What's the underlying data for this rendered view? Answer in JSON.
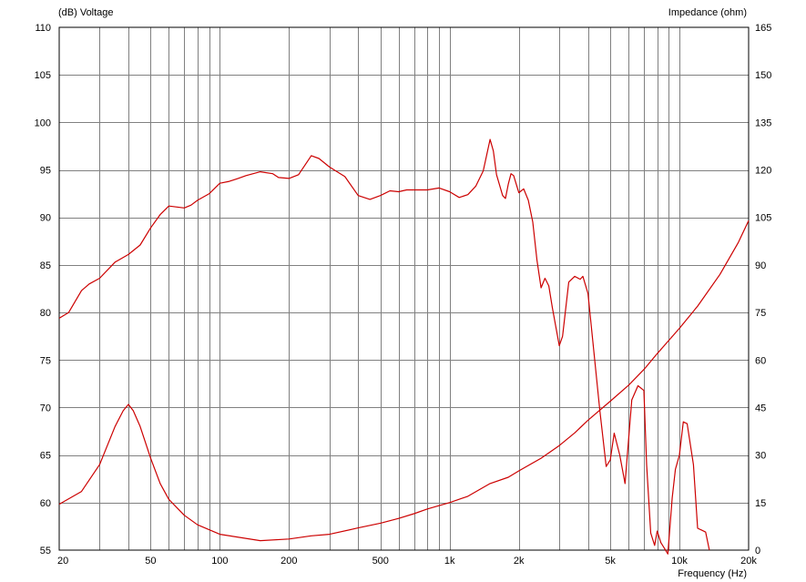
{
  "chart_data": {
    "type": "line",
    "title": "",
    "left_axis_label": "(dB)  Voltage",
    "right_axis_label": "Impedance  (ohm)",
    "xlabel": "Frequency  (Hz)",
    "x_scale": "log",
    "xlim": [
      20,
      20000
    ],
    "ylim_left": [
      55,
      110
    ],
    "ylim_right": [
      0,
      165
    ],
    "grid": true,
    "line_color": "#cc0000",
    "grid_color": "#808080",
    "left_ticks": [
      "110",
      "105",
      "100",
      "95",
      "90",
      "85",
      "80",
      "75",
      "70",
      "65",
      "60",
      "55"
    ],
    "right_ticks": [
      "165",
      "150",
      "135",
      "120",
      "105",
      "90",
      "75",
      "60",
      "45",
      "30",
      "15",
      "0"
    ],
    "x_ticks": [
      {
        "value": 20,
        "label": "20"
      },
      {
        "value": 50,
        "label": "50"
      },
      {
        "value": 100,
        "label": "100"
      },
      {
        "value": 200,
        "label": "200"
      },
      {
        "value": 500,
        "label": "500"
      },
      {
        "value": 1000,
        "label": "1k"
      },
      {
        "value": 2000,
        "label": "2k"
      },
      {
        "value": 5000,
        "label": "5k"
      },
      {
        "value": 10000,
        "label": "10k"
      },
      {
        "value": 20000,
        "label": "20k"
      }
    ],
    "series": [
      {
        "axis": "left",
        "points": [
          [
            20,
            79.4
          ],
          [
            22,
            80
          ],
          [
            25,
            82.3
          ],
          [
            27,
            83
          ],
          [
            30,
            83.6
          ],
          [
            35,
            85.3
          ],
          [
            40,
            86.1
          ],
          [
            45,
            87.1
          ],
          [
            50,
            88.9
          ],
          [
            55,
            90.3
          ],
          [
            60,
            91.2
          ],
          [
            70,
            91
          ],
          [
            75,
            91.3
          ],
          [
            80,
            91.8
          ],
          [
            90,
            92.5
          ],
          [
            100,
            93.6
          ],
          [
            110,
            93.8
          ],
          [
            120,
            94.1
          ],
          [
            130,
            94.4
          ],
          [
            150,
            94.8
          ],
          [
            170,
            94.6
          ],
          [
            180,
            94.2
          ],
          [
            200,
            94.1
          ],
          [
            220,
            94.5
          ],
          [
            250,
            96.5
          ],
          [
            270,
            96.2
          ],
          [
            300,
            95.3
          ],
          [
            350,
            94.3
          ],
          [
            400,
            92.3
          ],
          [
            450,
            91.9
          ],
          [
            500,
            92.3
          ],
          [
            550,
            92.8
          ],
          [
            600,
            92.7
          ],
          [
            650,
            92.9
          ],
          [
            700,
            92.9
          ],
          [
            800,
            92.9
          ],
          [
            900,
            93.1
          ],
          [
            1000,
            92.7
          ],
          [
            1100,
            92.1
          ],
          [
            1200,
            92.4
          ],
          [
            1300,
            93.3
          ],
          [
            1400,
            94.9
          ],
          [
            1500,
            98.2
          ],
          [
            1550,
            97
          ],
          [
            1600,
            94.5
          ],
          [
            1700,
            92.3
          ],
          [
            1750,
            92
          ],
          [
            1800,
            93.5
          ],
          [
            1850,
            94.6
          ],
          [
            1900,
            94.4
          ],
          [
            2000,
            92.6
          ],
          [
            2100,
            93
          ],
          [
            2200,
            91.8
          ],
          [
            2300,
            89.5
          ],
          [
            2400,
            85.5
          ],
          [
            2500,
            82.6
          ],
          [
            2600,
            83.6
          ],
          [
            2700,
            82.8
          ],
          [
            2800,
            80.5
          ],
          [
            3000,
            76.5
          ],
          [
            3100,
            77.5
          ],
          [
            3300,
            83.2
          ],
          [
            3500,
            83.8
          ],
          [
            3700,
            83.5
          ],
          [
            3800,
            83.8
          ],
          [
            4000,
            82
          ],
          [
            4500,
            69.8
          ],
          [
            4800,
            63.8
          ],
          [
            5000,
            64.5
          ],
          [
            5200,
            67.3
          ],
          [
            5500,
            65
          ],
          [
            5800,
            62
          ],
          [
            6200,
            70.8
          ],
          [
            6600,
            72.3
          ],
          [
            7000,
            71.8
          ],
          [
            7200,
            64
          ],
          [
            7500,
            56.8
          ],
          [
            7800,
            55.5
          ],
          [
            8000,
            57
          ],
          [
            8300,
            55.8
          ],
          [
            8600,
            55.2
          ],
          [
            8900,
            54.6
          ],
          [
            9300,
            60.5
          ],
          [
            9600,
            63.5
          ],
          [
            10000,
            65
          ],
          [
            10400,
            68.5
          ],
          [
            10800,
            68.3
          ],
          [
            11500,
            64
          ],
          [
            12000,
            57.3
          ],
          [
            12500,
            57.1
          ],
          [
            13000,
            56.9
          ],
          [
            13500,
            55
          ]
        ]
      },
      {
        "axis": "right",
        "points": [
          [
            20,
            14.5
          ],
          [
            25,
            18.5
          ],
          [
            30,
            27
          ],
          [
            35,
            39
          ],
          [
            38,
            44
          ],
          [
            40,
            46
          ],
          [
            42,
            44
          ],
          [
            45,
            39
          ],
          [
            50,
            29
          ],
          [
            55,
            21
          ],
          [
            60,
            16
          ],
          [
            70,
            11
          ],
          [
            80,
            8
          ],
          [
            100,
            5
          ],
          [
            150,
            3
          ],
          [
            200,
            3.5
          ],
          [
            250,
            4.5
          ],
          [
            300,
            5
          ],
          [
            400,
            7
          ],
          [
            500,
            8.5
          ],
          [
            600,
            10
          ],
          [
            700,
            11.5
          ],
          [
            800,
            13
          ],
          [
            1000,
            15
          ],
          [
            1200,
            17
          ],
          [
            1500,
            21
          ],
          [
            1800,
            23
          ],
          [
            2000,
            25
          ],
          [
            2500,
            29
          ],
          [
            3000,
            33
          ],
          [
            3500,
            37
          ],
          [
            4000,
            41
          ],
          [
            5000,
            47
          ],
          [
            6000,
            52
          ],
          [
            7000,
            57
          ],
          [
            8000,
            62
          ],
          [
            10000,
            70
          ],
          [
            12000,
            77
          ],
          [
            15000,
            87
          ],
          [
            18000,
            97
          ],
          [
            20000,
            104
          ]
        ]
      }
    ]
  }
}
